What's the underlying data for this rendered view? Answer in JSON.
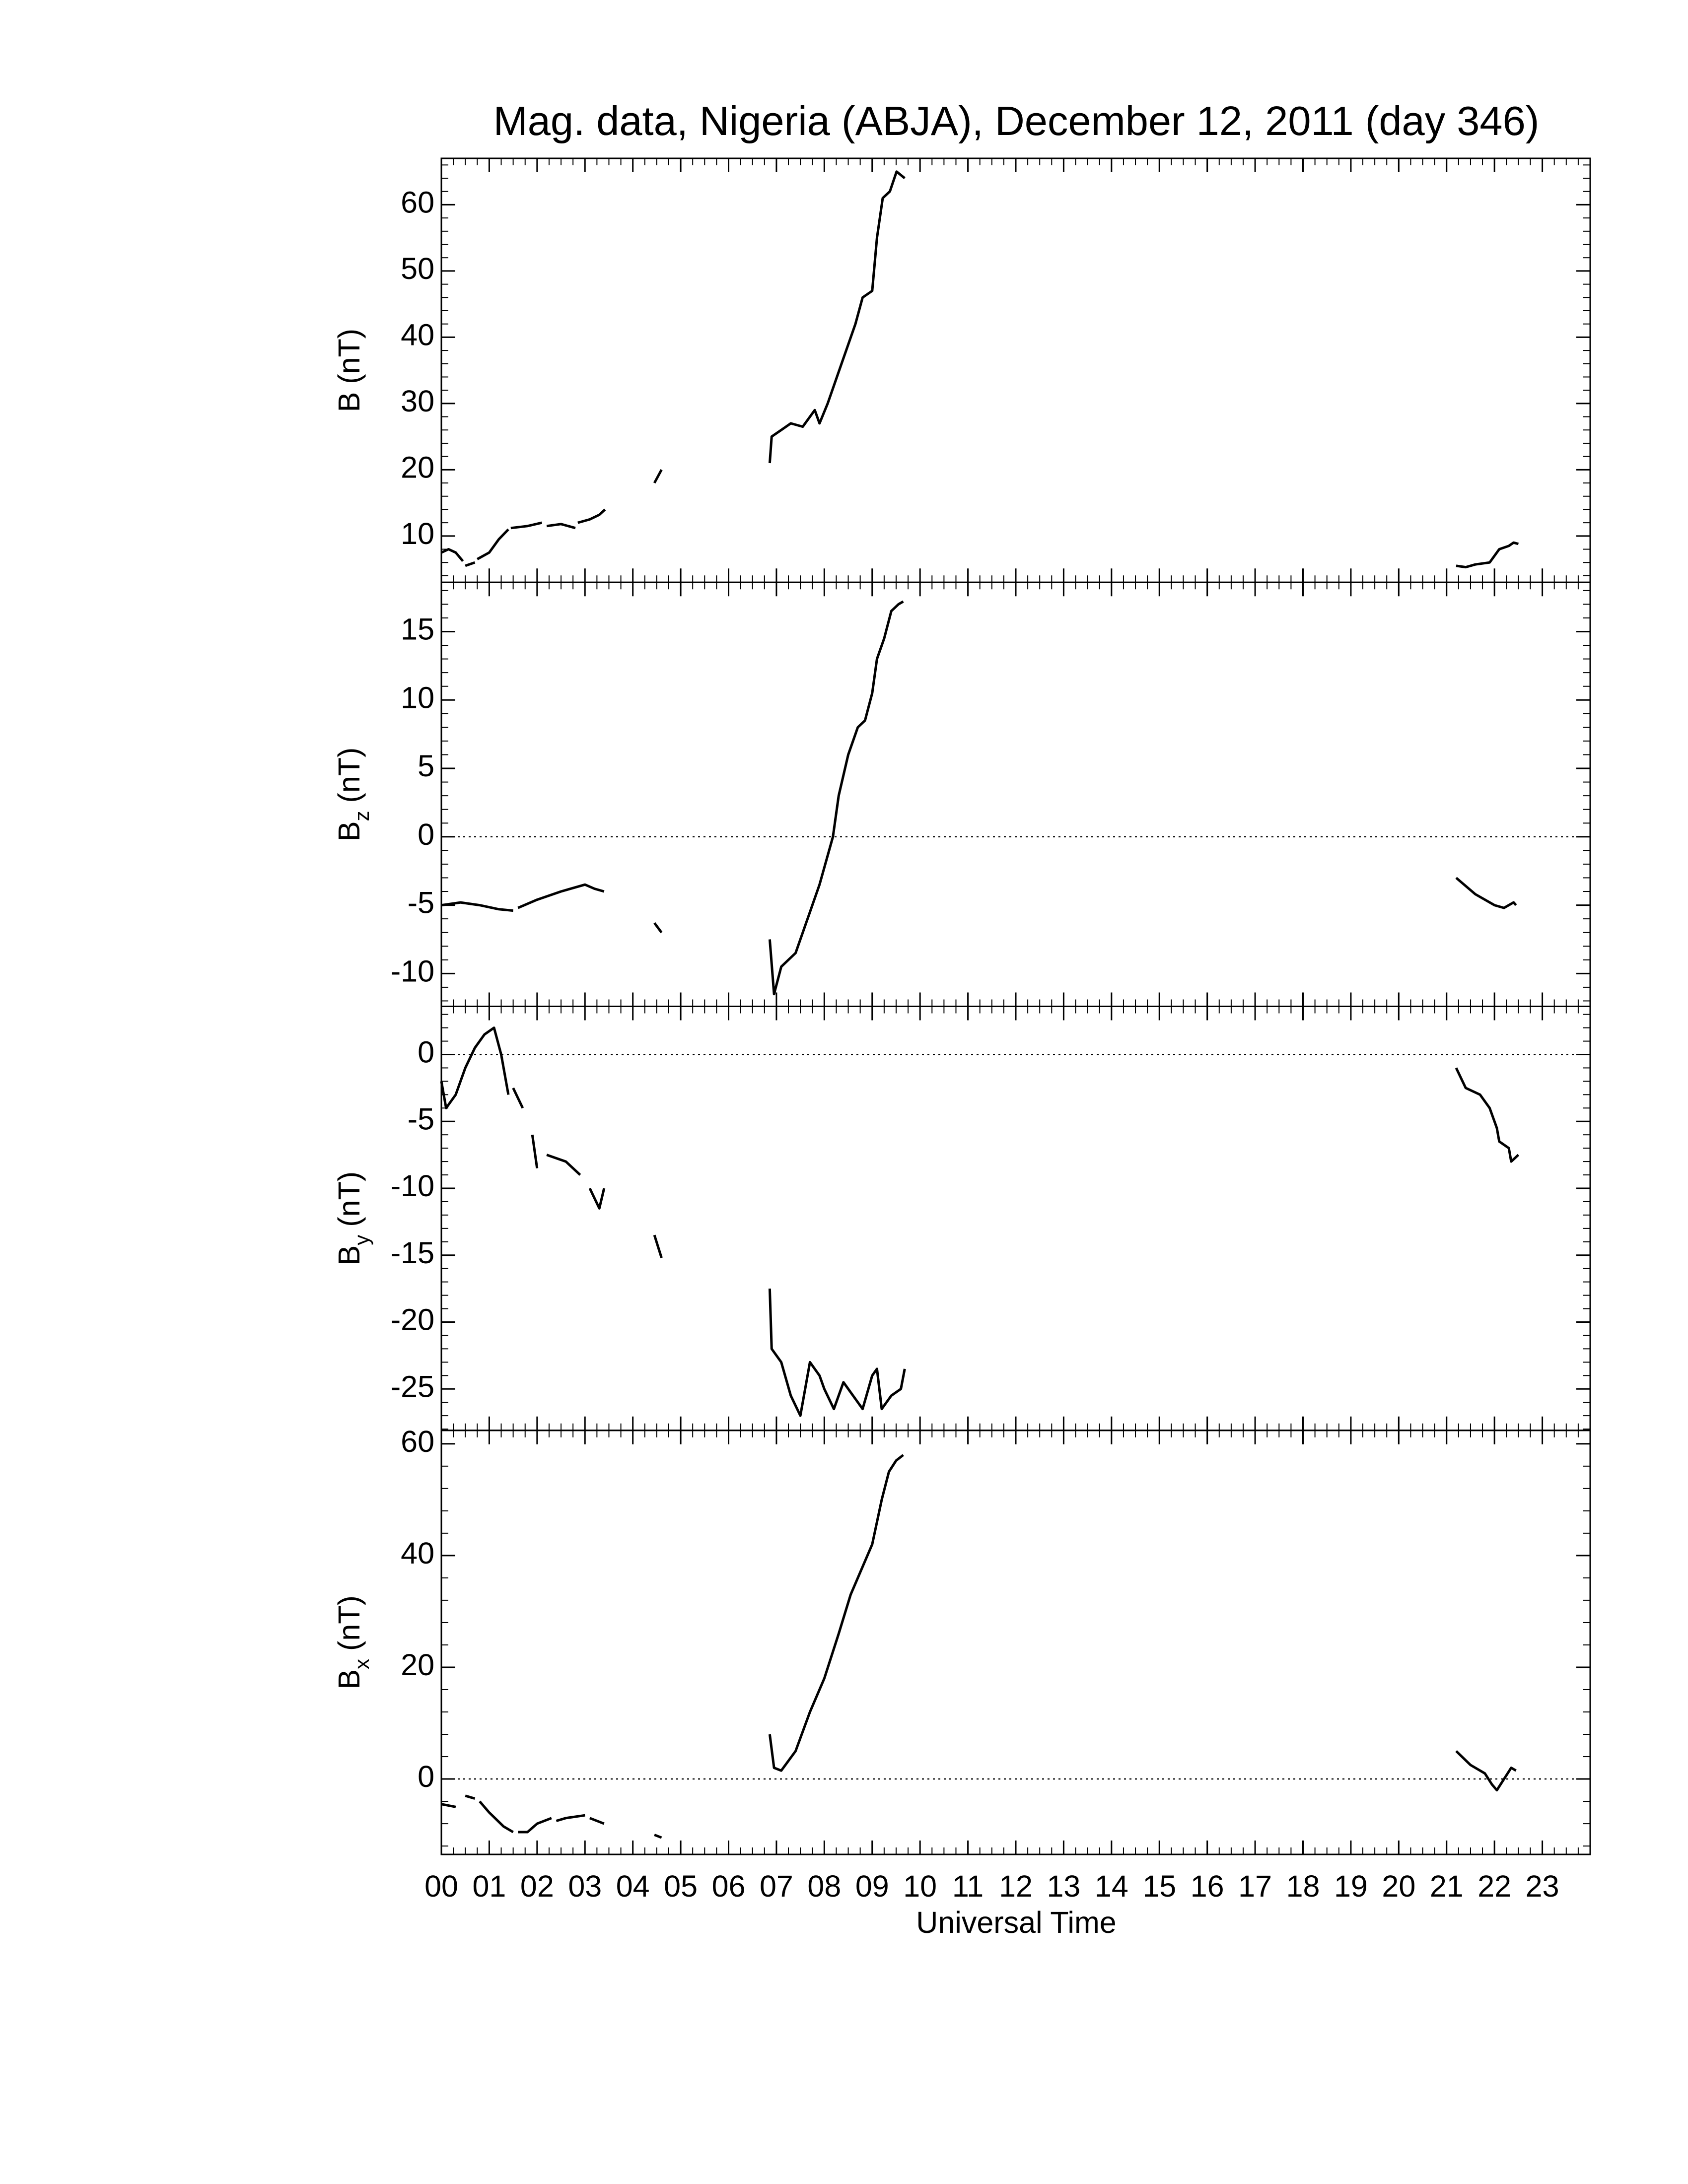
{
  "chart_data": {
    "type": "line",
    "title": "Mag. data, Nigeria (ABJA), December 12, 2011 (day 346)",
    "xlabel": "Universal Time",
    "xlim": [
      0,
      24
    ],
    "xticks": [
      {
        "value": 0,
        "label": "00"
      },
      {
        "value": 1,
        "label": "01"
      },
      {
        "value": 2,
        "label": "02"
      },
      {
        "value": 3,
        "label": "03"
      },
      {
        "value": 4,
        "label": "04"
      },
      {
        "value": 5,
        "label": "05"
      },
      {
        "value": 6,
        "label": "06"
      },
      {
        "value": 7,
        "label": "07"
      },
      {
        "value": 8,
        "label": "08"
      },
      {
        "value": 9,
        "label": "09"
      },
      {
        "value": 10,
        "label": "10"
      },
      {
        "value": 11,
        "label": "11"
      },
      {
        "value": 12,
        "label": "12"
      },
      {
        "value": 13,
        "label": "13"
      },
      {
        "value": 14,
        "label": "14"
      },
      {
        "value": 15,
        "label": "15"
      },
      {
        "value": 16,
        "label": "16"
      },
      {
        "value": 17,
        "label": "17"
      },
      {
        "value": 18,
        "label": "18"
      },
      {
        "value": 19,
        "label": "19"
      },
      {
        "value": 20,
        "label": "20"
      },
      {
        "value": 21,
        "label": "21"
      },
      {
        "value": 22,
        "label": "22"
      },
      {
        "value": 23,
        "label": "23"
      }
    ],
    "panels": [
      {
        "ylabel": "B",
        "ylabel_unit": "(nT)",
        "ylim": [
          3,
          67
        ],
        "yticks": [
          10,
          20,
          30,
          40,
          50,
          60
        ],
        "zero_line": false,
        "color": "#000000",
        "x": [
          0,
          0.15,
          0.3,
          0.45,
          null,
          0.5,
          0.7,
          null,
          0.75,
          1.0,
          1.2,
          1.4,
          null,
          1.45,
          1.8,
          2.1,
          null,
          2.2,
          2.5,
          2.8,
          null,
          2.85,
          3.1,
          3.3,
          3.42,
          null,
          4.45,
          4.6,
          null,
          6.86,
          6.9,
          7.1,
          7.3,
          7.55,
          7.8,
          7.9,
          8.07,
          8.36,
          8.65,
          8.8,
          9.0,
          9.1,
          9.22,
          9.37,
          9.51,
          9.68,
          null,
          21.2,
          21.4,
          21.6,
          21.9,
          22.1,
          22.3,
          22.4,
          22.5
        ],
        "values": [
          7.5,
          8,
          7.5,
          6.2,
          null,
          5.5,
          6,
          null,
          6.5,
          7.5,
          9.5,
          11,
          null,
          11.2,
          11.5,
          12,
          null,
          11.5,
          11.8,
          11.2,
          null,
          12,
          12.5,
          13.2,
          14,
          null,
          18,
          20,
          null,
          21,
          25,
          26,
          27,
          26.5,
          29,
          27,
          30,
          36,
          42,
          46,
          47,
          55,
          61,
          62,
          65,
          64,
          null,
          5.5,
          5.3,
          5.7,
          6,
          8,
          8.5,
          9,
          8.8
        ]
      },
      {
        "ylabel": "B",
        "ylabel_sub": "z",
        "ylabel_unit": "(nT)",
        "ylim": [
          -12.4,
          18.6
        ],
        "yticks": [
          -10,
          -5,
          0,
          5,
          10,
          15
        ],
        "zero_line": true,
        "color": "#000000",
        "x": [
          0,
          0.4,
          0.8,
          1.2,
          1.5,
          null,
          1.6,
          2.0,
          2.5,
          3.0,
          3.2,
          3.4,
          null,
          4.45,
          4.6,
          null,
          6.86,
          6.95,
          7.1,
          7.4,
          7.7,
          7.9,
          8.18,
          8.3,
          8.5,
          8.7,
          8.85,
          9.0,
          9.1,
          9.25,
          9.4,
          9.55,
          9.65,
          null,
          21.2,
          21.6,
          22.0,
          22.2,
          22.4,
          22.45
        ],
        "values": [
          -5,
          -4.8,
          -5,
          -5.3,
          -5.4,
          null,
          -5.2,
          -4.6,
          -4,
          -3.5,
          -3.8,
          -4,
          null,
          -6.3,
          -7,
          null,
          -7.5,
          -11.5,
          -9.5,
          -8.5,
          -5.5,
          -3.5,
          0,
          3,
          6,
          8,
          8.5,
          10.5,
          13,
          14.5,
          16.5,
          17,
          17.2,
          null,
          -3,
          -4.2,
          -5,
          -5.2,
          -4.8,
          -5
        ]
      },
      {
        "ylabel": "B",
        "ylabel_sub": "y",
        "ylabel_unit": "(nT)",
        "ylim": [
          -28.1,
          3.6
        ],
        "yticks": [
          -25,
          -20,
          -15,
          -10,
          -5,
          0
        ],
        "zero_line": true,
        "color": "#000000",
        "x": [
          0,
          0.1,
          0.3,
          0.5,
          0.7,
          0.9,
          1.1,
          1.25,
          1.4,
          null,
          1.5,
          1.7,
          null,
          1.9,
          2.0,
          null,
          2.2,
          2.6,
          2.9,
          null,
          3.1,
          3.3,
          3.4,
          null,
          4.45,
          4.6,
          null,
          6.86,
          6.9,
          7.1,
          7.3,
          7.5,
          7.7,
          7.9,
          8.0,
          8.2,
          8.4,
          8.6,
          8.8,
          9.0,
          9.1,
          9.2,
          9.4,
          9.6,
          9.68,
          null,
          21.2,
          21.4,
          21.7,
          21.9,
          22.05,
          22.1,
          22.3,
          22.35,
          22.5
        ],
        "values": [
          -2,
          -4,
          -3,
          -1,
          0.5,
          1.5,
          2,
          0,
          -3,
          null,
          -2.5,
          -4,
          null,
          -6,
          -8.5,
          null,
          -7.5,
          -8,
          -9,
          null,
          -10,
          -11.5,
          -10,
          null,
          -13.5,
          -15.2,
          null,
          -17.5,
          -22,
          -23,
          -25.5,
          -27,
          -23,
          -24,
          -25,
          -26.5,
          -24.5,
          -25.5,
          -26.5,
          -24,
          -23.5,
          -26.5,
          -25.5,
          -25,
          -23.5,
          null,
          -1,
          -2.5,
          -3,
          -4,
          -5.5,
          -6.5,
          -7,
          -8,
          -7.5
        ]
      },
      {
        "ylabel": "B",
        "ylabel_sub": "x",
        "ylabel_unit": "(nT)",
        "ylim": [
          -13.5,
          62.4
        ],
        "yticks": [
          0,
          20,
          40,
          60
        ],
        "zero_line": true,
        "color": "#000000",
        "x": [
          0,
          0.3,
          null,
          0.5,
          0.7,
          null,
          0.8,
          1.0,
          1.3,
          1.5,
          null,
          1.6,
          1.8,
          2.0,
          2.3,
          null,
          2.4,
          2.6,
          3.0,
          null,
          3.1,
          3.4,
          null,
          4.45,
          4.6,
          null,
          6.86,
          6.95,
          7.1,
          7.4,
          7.7,
          8.0,
          8.3,
          8.55,
          8.8,
          9.0,
          9.2,
          9.35,
          9.5,
          9.65,
          null,
          21.2,
          21.5,
          21.8,
          21.95,
          22.05,
          22.2,
          22.35,
          22.45
        ],
        "values": [
          -4.5,
          -5,
          null,
          -3,
          -3.5,
          null,
          -4,
          -6,
          -8.5,
          -9.5,
          null,
          -9.5,
          -9.5,
          -8,
          -7,
          null,
          -7.5,
          -7,
          -6.5,
          null,
          -7,
          -8,
          null,
          -10,
          -10.5,
          null,
          8,
          2,
          1.5,
          5,
          12,
          18,
          26,
          33,
          38,
          42,
          50,
          55,
          57,
          58,
          null,
          5,
          2.5,
          1,
          -1,
          -2,
          0,
          2,
          1.5
        ]
      }
    ]
  }
}
